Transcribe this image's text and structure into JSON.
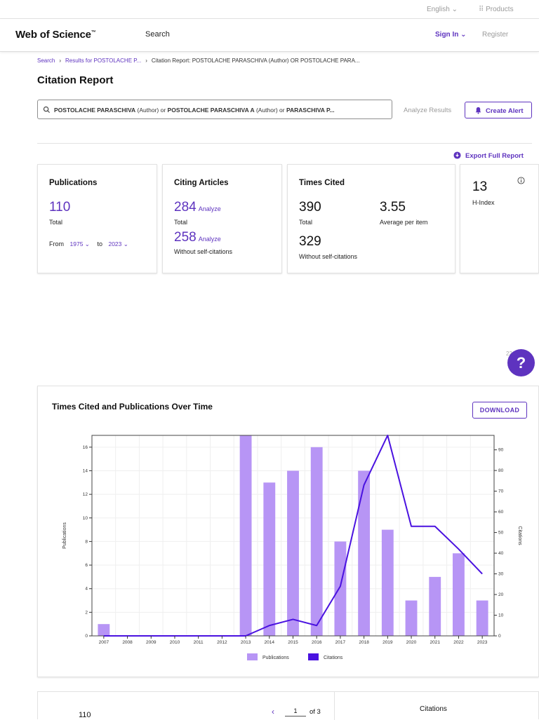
{
  "topbar": {
    "language": "English ⌄",
    "products": "Products"
  },
  "nav": {
    "logo": "Web of Science",
    "search": "Search",
    "sign_in": "Sign In ⌄",
    "register": "Register"
  },
  "breadcrumb": {
    "search": "Search",
    "results": "Results for POSTOLACHE P...",
    "current": "Citation Report: POSTOLACHE PARASCHIVA (Author) OR POSTOLACHE PARA..."
  },
  "page": {
    "title": "Citation Report"
  },
  "query": {
    "t1": "POSTOLACHE PARASCHIVA",
    "t2": " (Author) or ",
    "t3": "POSTOLACHE PARASCHIVA A",
    "t4": " (Author) or ",
    "t5": "PARASCHIVA P..."
  },
  "actions": {
    "analyze_results": "Analyze Results",
    "create_alert": "Create Alert",
    "export": "Export Full Report"
  },
  "publications": {
    "label": "Publications",
    "total": "110",
    "total_label": "Total",
    "from_label": "From",
    "from_year": "1975 ⌄",
    "to_label": "to",
    "to_year": "2023 ⌄"
  },
  "citing": {
    "label": "Citing Articles",
    "total": "284",
    "analyze": "Analyze",
    "total_label": "Total",
    "without": "258",
    "without_label": "Without self-citations"
  },
  "times_cited": {
    "label": "Times Cited",
    "total": "390",
    "total_label": "Total",
    "avg": "3.55",
    "avg_label": "Average per item",
    "without": "329",
    "without_label": "Without self-citations"
  },
  "hindex": {
    "value": "13",
    "label": "H-Index"
  },
  "help": {
    "badge": "22",
    "symbol": "?"
  },
  "chart_card": {
    "title": "Times Cited and Publications Over Time",
    "download": "DOWNLOAD"
  },
  "chart_data": {
    "type": "bar+line",
    "title": "Times Cited and Publications Over Time",
    "categories": [
      "2007",
      "2008",
      "2009",
      "2010",
      "2011",
      "2012",
      "2013",
      "2014",
      "2015",
      "2016",
      "2017",
      "2018",
      "2019",
      "2020",
      "2021",
      "2022",
      "2023"
    ],
    "series": [
      {
        "name": "Publications",
        "type": "bar",
        "axis": "left",
        "color": "#b795f5",
        "values": [
          1,
          0,
          0,
          0,
          0,
          0,
          17,
          13,
          14,
          16,
          8,
          14,
          9,
          3,
          5,
          7,
          3
        ]
      },
      {
        "name": "Citations",
        "type": "line",
        "axis": "right",
        "color": "#4a12e0",
        "values": [
          0,
          0,
          0,
          0,
          0,
          0,
          0,
          5,
          8,
          5,
          24,
          73,
          97,
          53,
          53,
          42,
          30
        ]
      }
    ],
    "ylabel_left": "Publications",
    "ylabel_right": "Citations",
    "ylim_left": [
      0,
      17
    ],
    "ylim_right": [
      0,
      97
    ],
    "yticks_left": [
      "0",
      "2",
      "4",
      "6",
      "8",
      "10",
      "12",
      "14",
      "16"
    ],
    "yticks_right": [
      "0",
      "10",
      "20",
      "30",
      "40",
      "50",
      "60",
      "70",
      "80",
      "90"
    ],
    "legend": [
      "Publications",
      "Citations"
    ]
  },
  "bottom": {
    "count": "110",
    "prev": "‹",
    "page": "1",
    "of": "of 3",
    "citations_header": "Citations"
  },
  "colors": {
    "accent": "#5e33bf",
    "bar": "#b795f5",
    "line": "#4a12e0"
  }
}
